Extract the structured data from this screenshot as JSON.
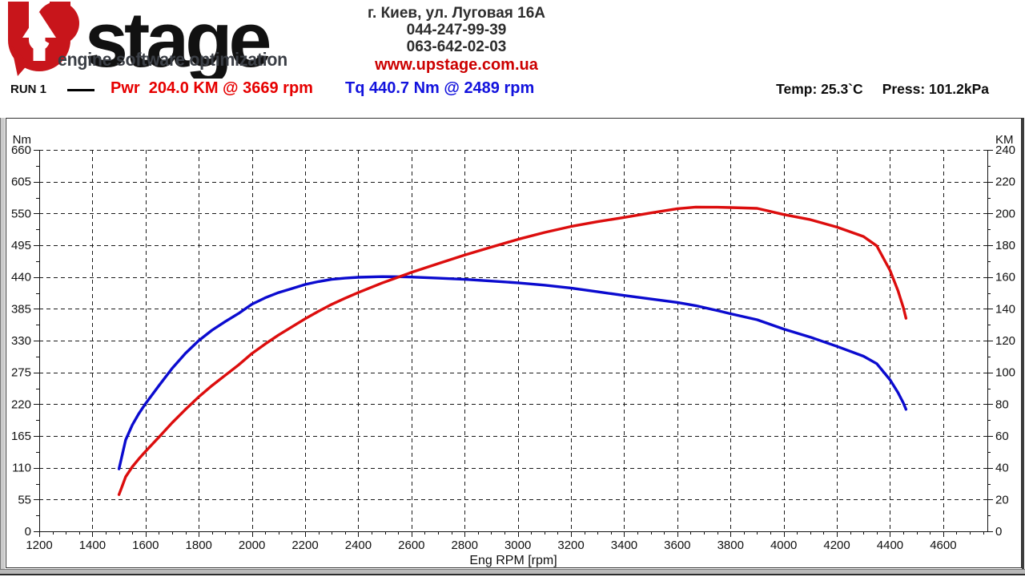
{
  "header": {
    "logo": {
      "brand": "stage",
      "tagline": "engine software optimization",
      "red": "#c8151b",
      "dark": "#3b3f46"
    },
    "contact": {
      "address": "г. Киев, ул. Луговая 16А",
      "phone1": "044-247-99-39",
      "phone2": "063-642-02-03",
      "website": "www.upstage.com.ua"
    },
    "legend": {
      "run_label": "RUN 1",
      "power_text": "Pwr  204.0 KM @ 3669 rpm",
      "torque_text": "Tq 440.7 Nm @ 2489 rpm",
      "temp_text": "Temp: 25.3`C",
      "press_text": "Press: 101.2kPa",
      "power_color": "#e60000",
      "torque_color": "#1212dd"
    }
  },
  "chart_data": {
    "type": "line",
    "xlabel": "Eng RPM [rpm]",
    "x_axis": {
      "min": 1200,
      "max": 4766,
      "major_tick_step": 200,
      "minor_tick_step": 50,
      "tick_labels": [
        "1200",
        "1400",
        "1600",
        "1800",
        "2000",
        "2200",
        "2400",
        "2600",
        "2800",
        "3000",
        "3200",
        "3400",
        "3600",
        "3800",
        "4000",
        "4200",
        "4400",
        "4600"
      ]
    },
    "left_axis": {
      "label": "Nm",
      "min": 0,
      "max": 660,
      "major_tick_step": 55,
      "minor_tick_step": 27.5,
      "tick_labels": [
        "0",
        "55",
        "110",
        "165",
        "220",
        "275",
        "330",
        "385",
        "440",
        "495",
        "550",
        "605",
        "660"
      ]
    },
    "right_axis": {
      "label": "KM",
      "min": 0,
      "max": 240,
      "major_tick_step": 20,
      "minor_tick_step": 10,
      "tick_labels": [
        "0",
        "20",
        "40",
        "60",
        "80",
        "100",
        "120",
        "140",
        "160",
        "180",
        "200",
        "220",
        "240"
      ]
    },
    "grid": {
      "dash": "5 4",
      "color": "#1a1a1a"
    },
    "series": [
      {
        "name": "Torque",
        "axis": "left",
        "unit": "Nm",
        "color": "#0b0bcf",
        "peak_annotation": "440.7 Nm @ 2489 rpm",
        "x": [
          1500,
          1510,
          1525,
          1550,
          1575,
          1600,
          1650,
          1700,
          1750,
          1800,
          1850,
          1900,
          1950,
          2000,
          2050,
          2100,
          2150,
          2200,
          2250,
          2300,
          2350,
          2400,
          2489,
          2550,
          2600,
          2700,
          2800,
          2900,
          3000,
          3100,
          3200,
          3300,
          3400,
          3500,
          3600,
          3669,
          3750,
          3800,
          3900,
          4000,
          4100,
          4200,
          4300,
          4350,
          4400,
          4430,
          4450,
          4460
        ],
        "values": [
          108,
          128,
          158,
          184,
          204,
          221,
          252,
          282,
          308,
          330,
          348,
          363,
          377,
          393,
          404,
          413,
          420,
          427,
          432,
          436,
          438,
          439.5,
          440.7,
          440.5,
          440,
          438,
          436,
          433,
          430,
          426,
          421,
          414.5,
          408,
          402,
          396,
          390.5,
          382,
          376.5,
          366,
          350,
          336,
          320,
          303,
          290,
          262,
          240,
          222,
          211
        ]
      },
      {
        "name": "Power",
        "axis": "right",
        "unit": "KM",
        "color": "#dc0d0d",
        "peak_annotation": "204.0 KM @ 3669 rpm",
        "x": [
          1500,
          1510,
          1525,
          1550,
          1575,
          1600,
          1650,
          1700,
          1750,
          1800,
          1850,
          1900,
          1950,
          2000,
          2050,
          2100,
          2150,
          2200,
          2250,
          2300,
          2350,
          2400,
          2489,
          2550,
          2600,
          2700,
          2800,
          2900,
          3000,
          3100,
          3200,
          3300,
          3400,
          3500,
          3600,
          3669,
          3750,
          3800,
          3900,
          4000,
          4100,
          4200,
          4300,
          4350,
          4400,
          4430,
          4450,
          4460
        ],
        "values": [
          23.1,
          27.5,
          34.3,
          40.6,
          45.7,
          50.3,
          59.2,
          68.3,
          76.7,
          84.6,
          91.7,
          98.2,
          104.7,
          111.9,
          117.9,
          123.5,
          128.6,
          133.7,
          138.4,
          142.8,
          146.6,
          150.2,
          156.2,
          159.9,
          162.9,
          168.4,
          173.8,
          178.8,
          183.7,
          188.0,
          191.8,
          194.8,
          197.5,
          200.3,
          203.0,
          204.0,
          203.9,
          203.7,
          203.2,
          199.3,
          196.1,
          191.4,
          185.5,
          179.6,
          164.1,
          151.4,
          140.7,
          134.0
        ]
      }
    ]
  }
}
